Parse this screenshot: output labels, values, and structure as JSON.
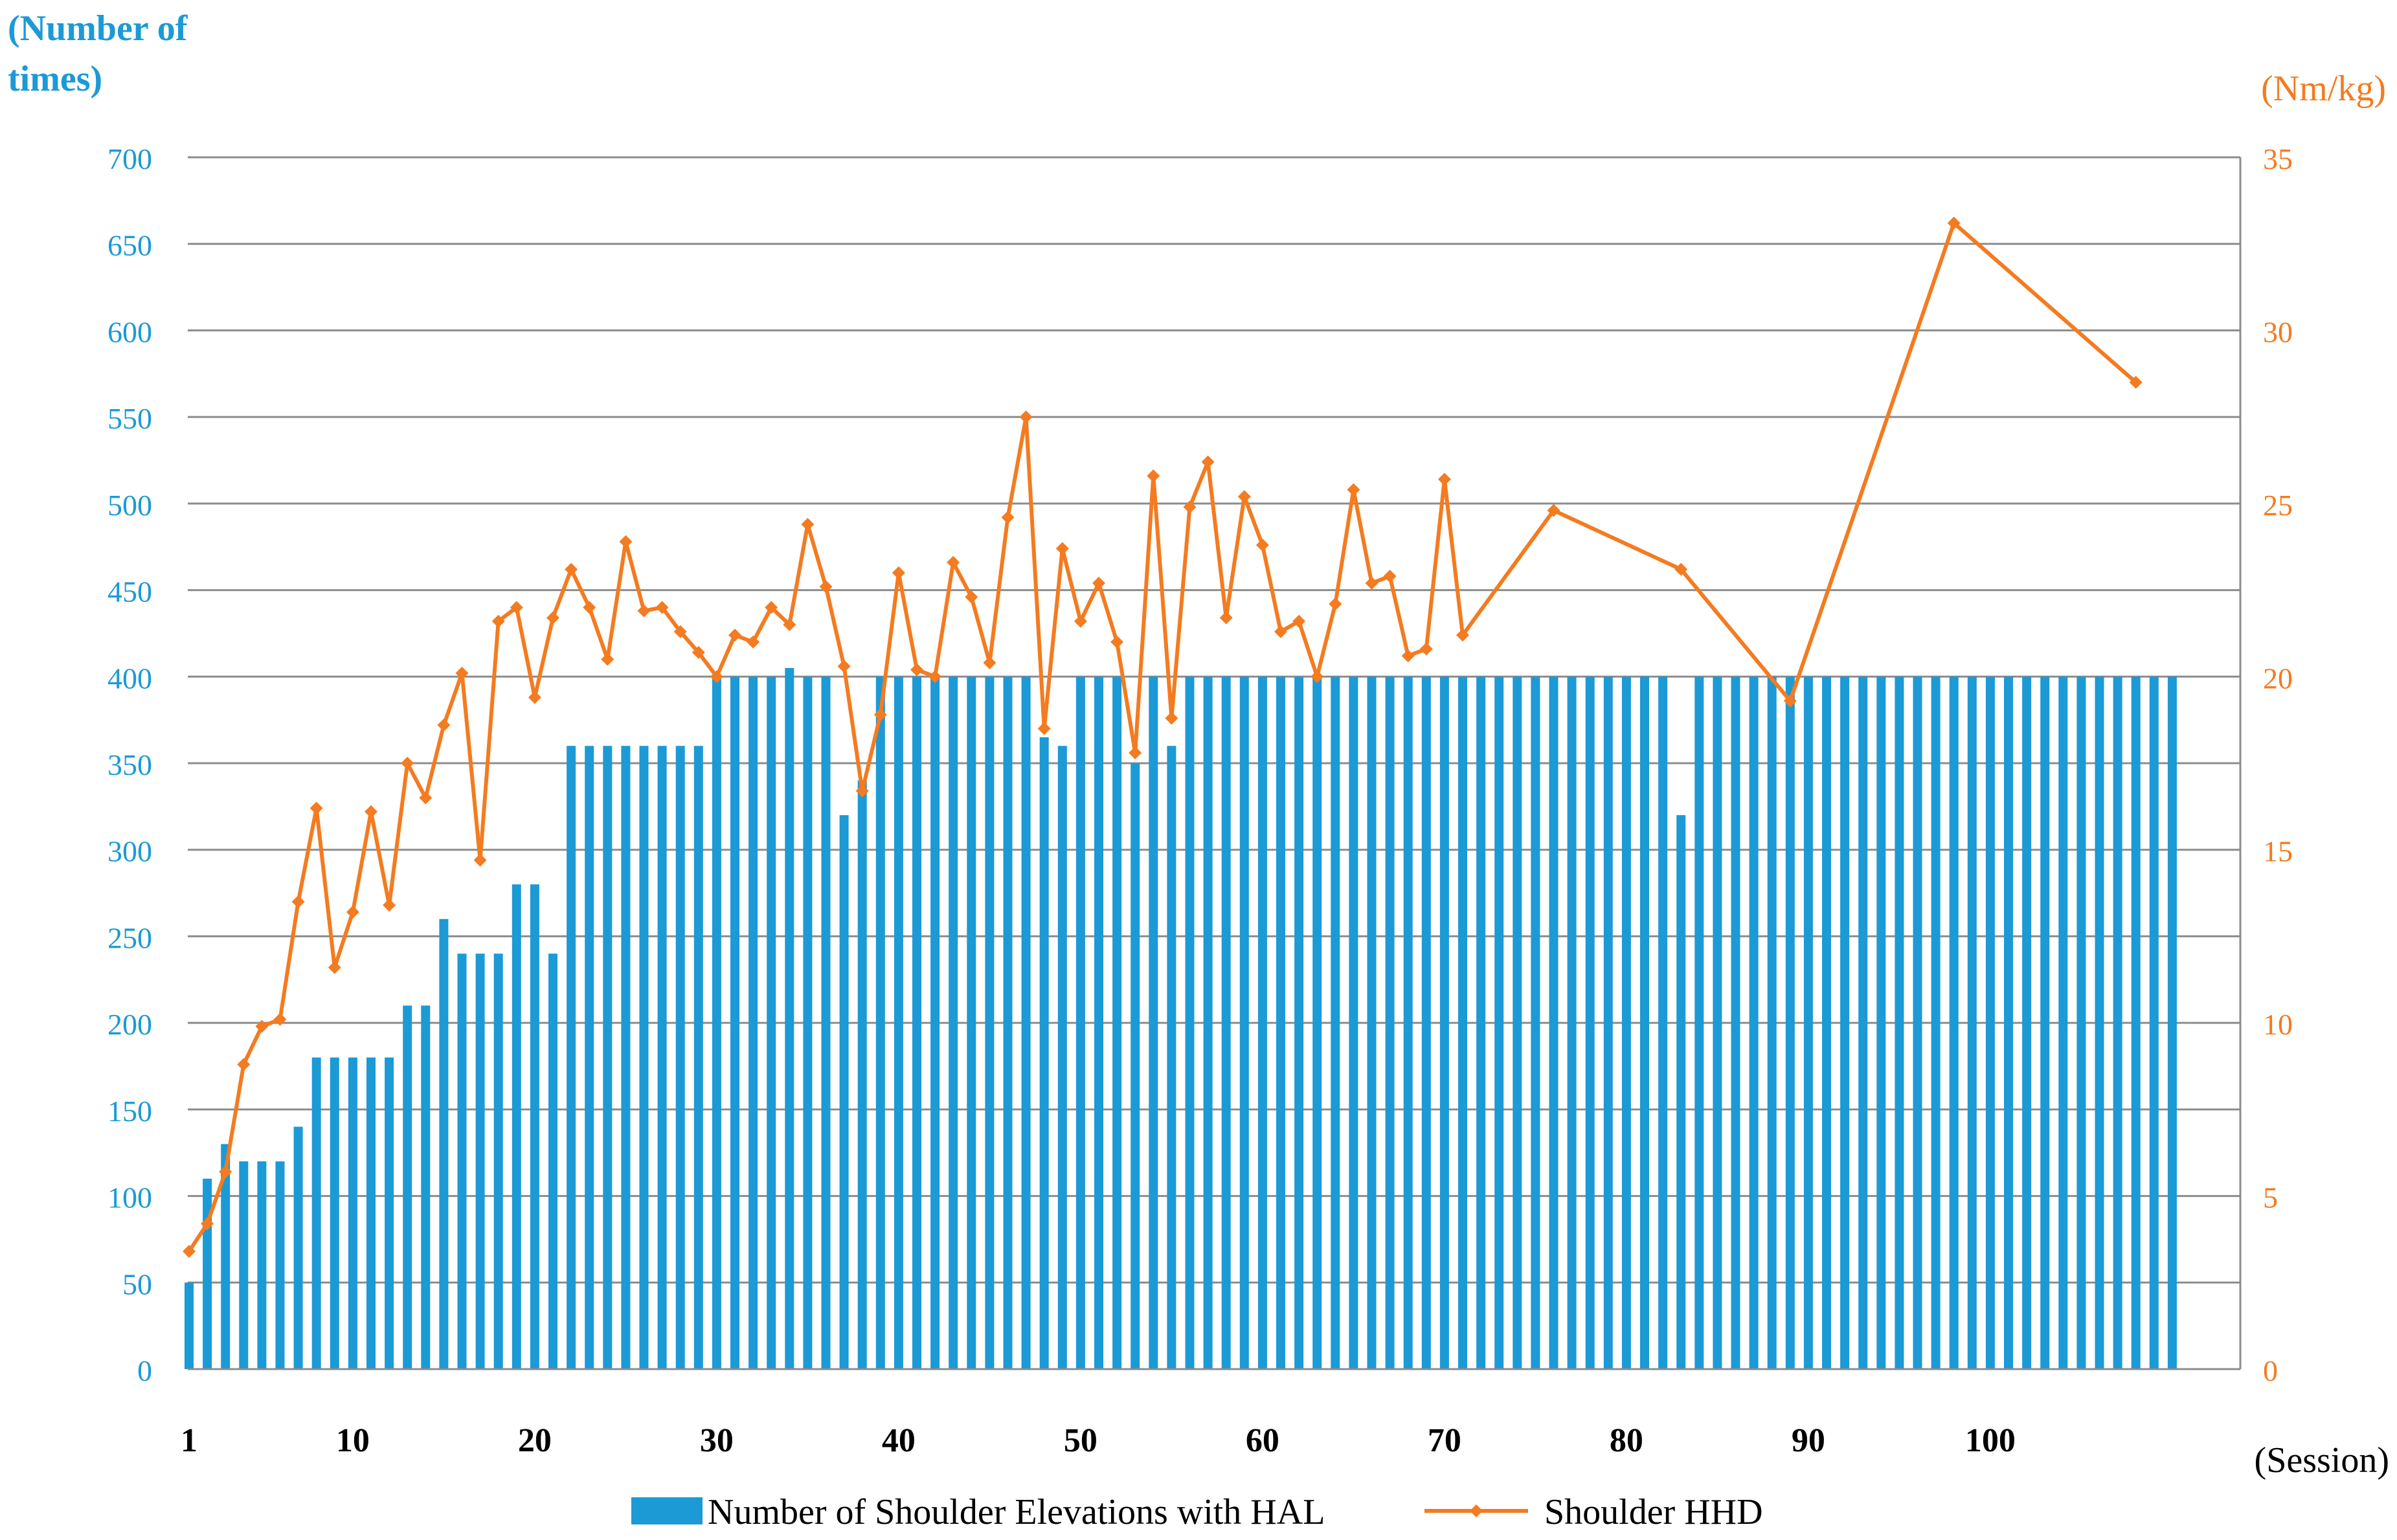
{
  "chart_data": {
    "type": "bar+line",
    "left_axis": {
      "title_line1": "(Number of",
      "title_line2": "times)",
      "min": 0,
      "max": 700,
      "step": 50,
      "ticks": [
        "0",
        "50",
        "100",
        "150",
        "200",
        "250",
        "300",
        "350",
        "400",
        "450",
        "500",
        "550",
        "600",
        "650",
        "700"
      ]
    },
    "right_axis": {
      "title": "(Nm/kg)",
      "min": 0,
      "max": 35,
      "step": 5,
      "ticks": [
        "0",
        "5",
        "10",
        "15",
        "20",
        "25",
        "30",
        "35"
      ]
    },
    "x_axis": {
      "title": "(Session)",
      "min": 1,
      "max": 110,
      "tick_values": [
        1,
        10,
        20,
        30,
        40,
        50,
        60,
        70,
        80,
        90,
        100
      ],
      "tick_labels": [
        "1",
        "10",
        "20",
        "30",
        "40",
        "50",
        "60",
        "70",
        "80",
        "90",
        "100"
      ]
    },
    "grid": true,
    "colors": {
      "bar": "#1b9ad6",
      "line": "#f47b20",
      "left_text": "#1b9ad6",
      "right_text": "#f47b20",
      "grid": "#8c8c8c"
    },
    "series": [
      {
        "name": "Number of Shoulder Elevations with HAL",
        "type": "bar",
        "axis": "left",
        "values": [
          50,
          110,
          130,
          120,
          120,
          120,
          140,
          180,
          180,
          180,
          180,
          180,
          210,
          210,
          260,
          240,
          240,
          240,
          280,
          280,
          240,
          360,
          360,
          360,
          360,
          360,
          360,
          360,
          360,
          400,
          400,
          400,
          400,
          405,
          400,
          400,
          320,
          340,
          400,
          400,
          400,
          400,
          400,
          400,
          400,
          400,
          400,
          365,
          360,
          400,
          400,
          400,
          350,
          400,
          360,
          400,
          400,
          400,
          400,
          400,
          400,
          400,
          400,
          400,
          400,
          400,
          400,
          400,
          400,
          400,
          400,
          400,
          400,
          400,
          400,
          400,
          400,
          400,
          400,
          400,
          400,
          400,
          320,
          400,
          400,
          400,
          400,
          400,
          400,
          400,
          400,
          400,
          400,
          400,
          400,
          400,
          400,
          400,
          400,
          400,
          400,
          400,
          400,
          400,
          400,
          400,
          400,
          400,
          400,
          400
        ]
      },
      {
        "name": "Shoulder HHD",
        "type": "line",
        "axis": "right",
        "points": [
          [
            1,
            3.4
          ],
          [
            2,
            4.2
          ],
          [
            3,
            5.7
          ],
          [
            4,
            8.8
          ],
          [
            5,
            9.9
          ],
          [
            6,
            10.1
          ],
          [
            7,
            13.5
          ],
          [
            8,
            16.2
          ],
          [
            9,
            11.6
          ],
          [
            10,
            13.2
          ],
          [
            11,
            16.1
          ],
          [
            12,
            13.4
          ],
          [
            13,
            17.5
          ],
          [
            14,
            16.5
          ],
          [
            15,
            18.6
          ],
          [
            16,
            20.1
          ],
          [
            17,
            14.7
          ],
          [
            18,
            21.6
          ],
          [
            19,
            22.0
          ],
          [
            20,
            19.4
          ],
          [
            21,
            21.7
          ],
          [
            22,
            23.1
          ],
          [
            23,
            22.0
          ],
          [
            24,
            20.5
          ],
          [
            25,
            23.9
          ],
          [
            26,
            21.9
          ],
          [
            27,
            22.0
          ],
          [
            28,
            21.3
          ],
          [
            29,
            20.7
          ],
          [
            30,
            20.0
          ],
          [
            31,
            21.2
          ],
          [
            32,
            21.0
          ],
          [
            33,
            22.0
          ],
          [
            34,
            21.5
          ],
          [
            35,
            24.4
          ],
          [
            36,
            22.6
          ],
          [
            37,
            20.3
          ],
          [
            38,
            16.7
          ],
          [
            39,
            18.9
          ],
          [
            40,
            23.0
          ],
          [
            41,
            20.2
          ],
          [
            42,
            20.0
          ],
          [
            43,
            23.3
          ],
          [
            44,
            22.3
          ],
          [
            45,
            20.4
          ],
          [
            46,
            24.6
          ],
          [
            47,
            27.5
          ],
          [
            48,
            18.5
          ],
          [
            49,
            23.7
          ],
          [
            50,
            21.6
          ],
          [
            51,
            22.7
          ],
          [
            52,
            21.0
          ],
          [
            53,
            17.8
          ],
          [
            54,
            25.8
          ],
          [
            55,
            18.8
          ],
          [
            56,
            24.9
          ],
          [
            57,
            26.2
          ],
          [
            58,
            21.7
          ],
          [
            59,
            25.2
          ],
          [
            60,
            23.8
          ],
          [
            61,
            21.3
          ],
          [
            62,
            21.6
          ],
          [
            63,
            20.0
          ],
          [
            64,
            22.1
          ],
          [
            65,
            25.4
          ],
          [
            66,
            22.7
          ],
          [
            67,
            22.9
          ],
          [
            68,
            20.6
          ],
          [
            69,
            20.8
          ],
          [
            70,
            25.7
          ],
          [
            71,
            21.2
          ],
          [
            76,
            24.8
          ],
          [
            83,
            23.1
          ],
          [
            89,
            19.3
          ],
          [
            98,
            33.1
          ],
          [
            108,
            28.5
          ]
        ]
      }
    ],
    "legend": {
      "position": "bottom-center",
      "bar_label": "Number of Shoulder Elevations with HAL",
      "line_label": "Shoulder HHD"
    }
  }
}
